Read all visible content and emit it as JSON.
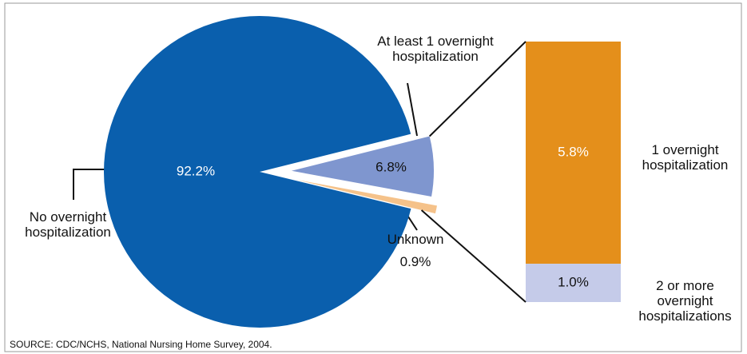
{
  "chart_data": [
    {
      "type": "pie",
      "categories": [
        "No overnight hospitalization",
        "At least 1 overnight hospitalization",
        "Unknown"
      ],
      "values": [
        92.2,
        6.8,
        0.9
      ],
      "value_labels": [
        "92.2%",
        "6.8%",
        "0.9%"
      ],
      "colors": [
        "#0a5fad",
        "#7f96cf",
        "#f5c28a"
      ]
    },
    {
      "type": "bar",
      "stacked": true,
      "categories": [
        "1 overnight hospitalization",
        "2 or more overnight hospitalizations"
      ],
      "values": [
        5.8,
        1.0
      ],
      "value_labels": [
        "5.8%",
        "1.0%"
      ],
      "colors": [
        "#e48f1b",
        "#c5cbe9"
      ]
    }
  ],
  "source": "SOURCE: CDC/NCHS, National Nursing Home Survey, 2004."
}
